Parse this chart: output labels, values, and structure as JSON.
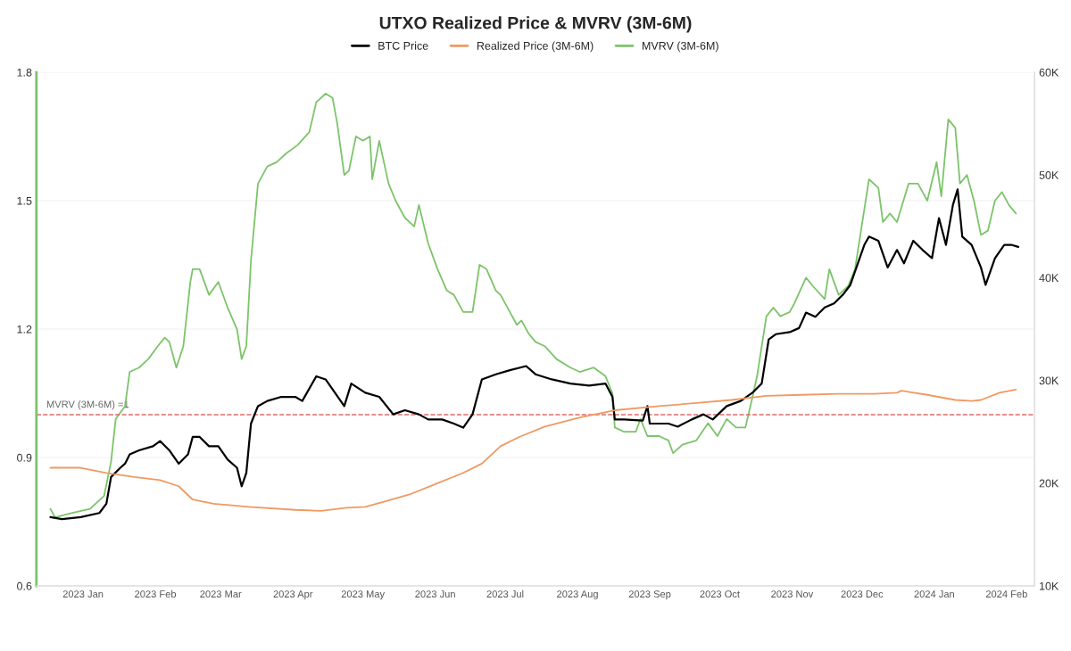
{
  "chart_data": {
    "type": "line",
    "title": "UTXO Realized Price & MVRV (3M-6M)",
    "legend": "top",
    "grid": "y",
    "xlim": [
      "2022-12-12",
      "2024-02-13"
    ],
    "xticks": [
      {
        "value": "2023-01-01",
        "label": "2023 Jan"
      },
      {
        "value": "2023-02-01",
        "label": "2023 Feb"
      },
      {
        "value": "2023-03-01",
        "label": "2023 Mar"
      },
      {
        "value": "2023-04-01",
        "label": "2023 Apr"
      },
      {
        "value": "2023-05-01",
        "label": "2023 May"
      },
      {
        "value": "2023-06-01",
        "label": "2023 Jun"
      },
      {
        "value": "2023-07-01",
        "label": "2023 Jul"
      },
      {
        "value": "2023-08-01",
        "label": "2023 Aug"
      },
      {
        "value": "2023-09-01",
        "label": "2023 Sep"
      },
      {
        "value": "2023-10-01",
        "label": "2023 Oct"
      },
      {
        "value": "2023-11-01",
        "label": "2023 Nov"
      },
      {
        "value": "2023-12-01",
        "label": "2023 Dec"
      },
      {
        "value": "2024-01-01",
        "label": "2024 Jan"
      },
      {
        "value": "2024-02-01",
        "label": "2024 Feb"
      }
    ],
    "ylim": [
      0.6,
      1.8
    ],
    "yticks": [
      0.6,
      0.9,
      1.2,
      1.5,
      1.8
    ],
    "y2lim": [
      10000,
      60000
    ],
    "y2ticks": [
      {
        "value": 10000,
        "label": "10K"
      },
      {
        "value": 20000,
        "label": "20K"
      },
      {
        "value": 30000,
        "label": "30K"
      },
      {
        "value": 40000,
        "label": "40K"
      },
      {
        "value": 50000,
        "label": "50K"
      },
      {
        "value": 60000,
        "label": "60K"
      }
    ],
    "ref_lines": [
      {
        "axis": "y",
        "value": 1,
        "label": "MVRV (3M-6M) =1",
        "color": "#e06b6b",
        "line_style": "dashed"
      }
    ],
    "series": [
      {
        "name": "BTC Price",
        "color": "#000000",
        "axis": "y2",
        "x": [
          "2022-12-18",
          "2022-12-23",
          "2022-12-31",
          "2023-01-08",
          "2023-01-11",
          "2023-01-13",
          "2023-01-17",
          "2023-01-19",
          "2023-01-21",
          "2023-01-25",
          "2023-01-31",
          "2023-02-03",
          "2023-02-07",
          "2023-02-11",
          "2023-02-15",
          "2023-02-17",
          "2023-02-20",
          "2023-02-24",
          "2023-02-28",
          "2023-03-04",
          "2023-03-08",
          "2023-03-10",
          "2023-03-12",
          "2023-03-14",
          "2023-03-17",
          "2023-03-21",
          "2023-03-27",
          "2023-04-02",
          "2023-04-05",
          "2023-04-11",
          "2023-04-15",
          "2023-04-19",
          "2023-04-23",
          "2023-04-26",
          "2023-05-02",
          "2023-05-08",
          "2023-05-14",
          "2023-05-19",
          "2023-05-25",
          "2023-05-29",
          "2023-06-04",
          "2023-06-09",
          "2023-06-13",
          "2023-06-17",
          "2023-06-21",
          "2023-06-27",
          "2023-07-03",
          "2023-07-10",
          "2023-07-14",
          "2023-07-21",
          "2023-07-29",
          "2023-08-06",
          "2023-08-13",
          "2023-08-16",
          "2023-08-17",
          "2023-08-21",
          "2023-08-29",
          "2023-08-31",
          "2023-09-01",
          "2023-09-09",
          "2023-09-13",
          "2023-09-19",
          "2023-09-24",
          "2023-09-28",
          "2023-10-04",
          "2023-10-10",
          "2023-10-15",
          "2023-10-19",
          "2023-10-22",
          "2023-10-25",
          "2023-10-31",
          "2023-11-04",
          "2023-11-07",
          "2023-11-11",
          "2023-11-15",
          "2023-11-19",
          "2023-11-23",
          "2023-11-26",
          "2023-12-02",
          "2023-12-04",
          "2023-12-08",
          "2023-12-12",
          "2023-12-16",
          "2023-12-19",
          "2023-12-23",
          "2023-12-27",
          "2023-12-31",
          "2024-01-03",
          "2024-01-06",
          "2024-01-09",
          "2024-01-11",
          "2024-01-13",
          "2024-01-17",
          "2024-01-21",
          "2024-01-23",
          "2024-01-27",
          "2024-01-31",
          "2024-02-03",
          "2024-02-06"
        ],
        "values": [
          16700,
          16500,
          16700,
          17100,
          18000,
          20600,
          21500,
          21900,
          22800,
          23200,
          23600,
          24100,
          23200,
          21900,
          22800,
          24500,
          24500,
          23600,
          23600,
          22300,
          21500,
          19700,
          21000,
          25800,
          27500,
          28000,
          28400,
          28400,
          28000,
          30400,
          30100,
          28800,
          27500,
          29700,
          28800,
          28400,
          26700,
          27100,
          26700,
          26200,
          26200,
          25800,
          25400,
          26700,
          30100,
          30600,
          31000,
          31400,
          30600,
          30100,
          29700,
          29500,
          29700,
          28400,
          26200,
          26200,
          26100,
          27500,
          25800,
          25800,
          25500,
          26200,
          26700,
          26200,
          27500,
          28000,
          28800,
          29700,
          34000,
          34500,
          34700,
          35100,
          36600,
          36200,
          37100,
          37500,
          38400,
          39300,
          43200,
          44000,
          43600,
          41000,
          42700,
          41400,
          43600,
          42700,
          41900,
          45800,
          43200,
          47100,
          48600,
          44000,
          43200,
          41000,
          39300,
          41900,
          43200,
          43200,
          43000
        ]
      },
      {
        "name": "Realized Price (3M-6M)",
        "color": "#ee9a62",
        "axis": "y2",
        "x": [
          "2022-12-18",
          "2022-12-31",
          "2023-01-11",
          "2023-01-23",
          "2023-02-03",
          "2023-02-11",
          "2023-02-17",
          "2023-02-26",
          "2023-03-13",
          "2023-04-02",
          "2023-04-13",
          "2023-04-24",
          "2023-05-02",
          "2023-05-10",
          "2023-05-21",
          "2023-06-02",
          "2023-06-13",
          "2023-06-21",
          "2023-06-29",
          "2023-07-07",
          "2023-07-18",
          "2023-08-02",
          "2023-08-17",
          "2023-09-05",
          "2023-09-21",
          "2023-10-06",
          "2023-10-21",
          "2023-11-05",
          "2023-11-21",
          "2023-12-06",
          "2023-12-16",
          "2023-12-18",
          "2023-12-29",
          "2024-01-10",
          "2024-01-17",
          "2024-01-21",
          "2024-01-29",
          "2024-02-05"
        ],
        "values": [
          21500,
          21500,
          21000,
          20600,
          20300,
          19700,
          18400,
          18000,
          17700,
          17400,
          17300,
          17600,
          17700,
          18200,
          18900,
          20000,
          21000,
          21900,
          23600,
          24500,
          25500,
          26400,
          27100,
          27500,
          27800,
          28100,
          28500,
          28600,
          28700,
          28700,
          28800,
          29000,
          28600,
          28100,
          28000,
          28100,
          28800,
          29100
        ]
      },
      {
        "name": "MVRV (3M-6M)",
        "color": "#7cc46a",
        "axis": "y",
        "x": [
          "2022-12-18",
          "2022-12-20",
          "2022-12-27",
          "2023-01-04",
          "2023-01-10",
          "2023-01-13",
          "2023-01-15",
          "2023-01-19",
          "2023-01-21",
          "2023-01-25",
          "2023-01-29",
          "2023-02-02",
          "2023-02-05",
          "2023-02-07",
          "2023-02-10",
          "2023-02-13",
          "2023-02-16",
          "2023-02-17",
          "2023-02-20",
          "2023-02-24",
          "2023-02-28",
          "2023-03-04",
          "2023-03-08",
          "2023-03-10",
          "2023-03-12",
          "2023-03-14",
          "2023-03-17",
          "2023-03-21",
          "2023-03-25",
          "2023-03-29",
          "2023-04-03",
          "2023-04-08",
          "2023-04-11",
          "2023-04-15",
          "2023-04-18",
          "2023-04-20",
          "2023-04-23",
          "2023-04-25",
          "2023-04-28",
          "2023-05-01",
          "2023-05-04",
          "2023-05-05",
          "2023-05-08",
          "2023-05-12",
          "2023-05-15",
          "2023-05-19",
          "2023-05-23",
          "2023-05-25",
          "2023-05-29",
          "2023-06-02",
          "2023-06-06",
          "2023-06-09",
          "2023-06-13",
          "2023-06-17",
          "2023-06-20",
          "2023-06-23",
          "2023-06-27",
          "2023-06-29",
          "2023-07-03",
          "2023-07-06",
          "2023-07-08",
          "2023-07-11",
          "2023-07-14",
          "2023-07-18",
          "2023-07-23",
          "2023-07-29",
          "2023-08-02",
          "2023-08-08",
          "2023-08-13",
          "2023-08-16",
          "2023-08-17",
          "2023-08-21",
          "2023-08-26",
          "2023-08-28",
          "2023-08-31",
          "2023-09-05",
          "2023-09-09",
          "2023-09-11",
          "2023-09-15",
          "2023-09-21",
          "2023-09-26",
          "2023-09-30",
          "2023-10-04",
          "2023-10-08",
          "2023-10-12",
          "2023-10-15",
          "2023-10-17",
          "2023-10-21",
          "2023-10-24",
          "2023-10-27",
          "2023-10-31",
          "2023-11-02",
          "2023-11-07",
          "2023-11-10",
          "2023-11-15",
          "2023-11-17",
          "2023-11-21",
          "2023-11-25",
          "2023-11-28",
          "2023-12-02",
          "2023-12-04",
          "2023-12-08",
          "2023-12-10",
          "2023-12-13",
          "2023-12-16",
          "2023-12-21",
          "2023-12-25",
          "2023-12-29",
          "2024-01-02",
          "2024-01-04",
          "2024-01-07",
          "2024-01-10",
          "2024-01-12",
          "2024-01-15",
          "2024-01-18",
          "2024-01-21",
          "2024-01-24",
          "2024-01-27",
          "2024-01-30",
          "2024-02-02",
          "2024-02-05"
        ],
        "values": [
          0.78,
          0.76,
          0.77,
          0.78,
          0.81,
          0.89,
          0.99,
          1.02,
          1.1,
          1.11,
          1.13,
          1.16,
          1.18,
          1.17,
          1.11,
          1.16,
          1.31,
          1.34,
          1.34,
          1.28,
          1.31,
          1.25,
          1.2,
          1.13,
          1.16,
          1.36,
          1.54,
          1.58,
          1.59,
          1.61,
          1.63,
          1.66,
          1.73,
          1.75,
          1.74,
          1.68,
          1.56,
          1.57,
          1.65,
          1.64,
          1.65,
          1.55,
          1.64,
          1.54,
          1.5,
          1.46,
          1.44,
          1.49,
          1.4,
          1.34,
          1.29,
          1.28,
          1.24,
          1.24,
          1.35,
          1.34,
          1.29,
          1.28,
          1.24,
          1.21,
          1.22,
          1.19,
          1.17,
          1.16,
          1.13,
          1.11,
          1.1,
          1.11,
          1.09,
          1.05,
          0.97,
          0.96,
          0.96,
          0.99,
          0.95,
          0.95,
          0.94,
          0.91,
          0.93,
          0.94,
          0.98,
          0.95,
          0.99,
          0.97,
          0.97,
          1.04,
          1.09,
          1.23,
          1.25,
          1.23,
          1.24,
          1.26,
          1.32,
          1.3,
          1.27,
          1.34,
          1.28,
          1.3,
          1.34,
          1.48,
          1.55,
          1.53,
          1.45,
          1.47,
          1.45,
          1.54,
          1.54,
          1.5,
          1.59,
          1.51,
          1.69,
          1.67,
          1.54,
          1.56,
          1.5,
          1.42,
          1.43,
          1.5,
          1.52,
          1.49,
          1.47
        ]
      }
    ]
  }
}
